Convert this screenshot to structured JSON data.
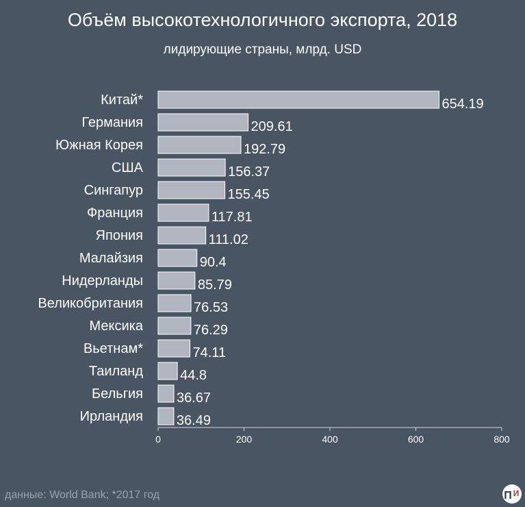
{
  "title": "Объём высокотехнологичного экспорта, 2018",
  "subtitle": "лидирующие страны, млрд. USD",
  "source": "данные: World Bank; *2017 год",
  "logo": {
    "icon": "pi-logo-icon",
    "p": "П",
    "i": "И"
  },
  "colors": {
    "background": "#4a5564",
    "bar": "#b1b5bf",
    "bar_stroke": "#ffffff",
    "text": "#ffffff",
    "axis": "#d0d4da"
  },
  "chart_data": {
    "type": "bar",
    "orientation": "horizontal",
    "categories": [
      "Китай*",
      "Германия",
      "Южная Корея",
      "США",
      "Сингапур",
      "Франция",
      "Япония",
      "Малайзия",
      "Нидерланды",
      "Великобритания",
      "Мексика",
      "Вьетнам*",
      "Таиланд",
      "Бельгия",
      "Ирландия"
    ],
    "values": [
      654.19,
      209.61,
      192.79,
      156.37,
      155.45,
      117.81,
      111.02,
      90.4,
      85.79,
      76.53,
      76.29,
      74.11,
      44.8,
      36.67,
      36.49
    ],
    "value_labels": [
      "654.19",
      "209.61",
      "192.79",
      "156.37",
      "155.45",
      "117.81",
      "111.02",
      "90.4",
      "85.79",
      "76.53",
      "76.29",
      "74.11",
      "44.8",
      "36.67",
      "36.49"
    ],
    "xlim": [
      0,
      800
    ],
    "xticks": [
      0,
      200,
      400,
      600,
      800
    ],
    "xtick_labels": [
      "0",
      "200",
      "400",
      "600",
      "800"
    ],
    "grid": false,
    "legend": "none"
  }
}
